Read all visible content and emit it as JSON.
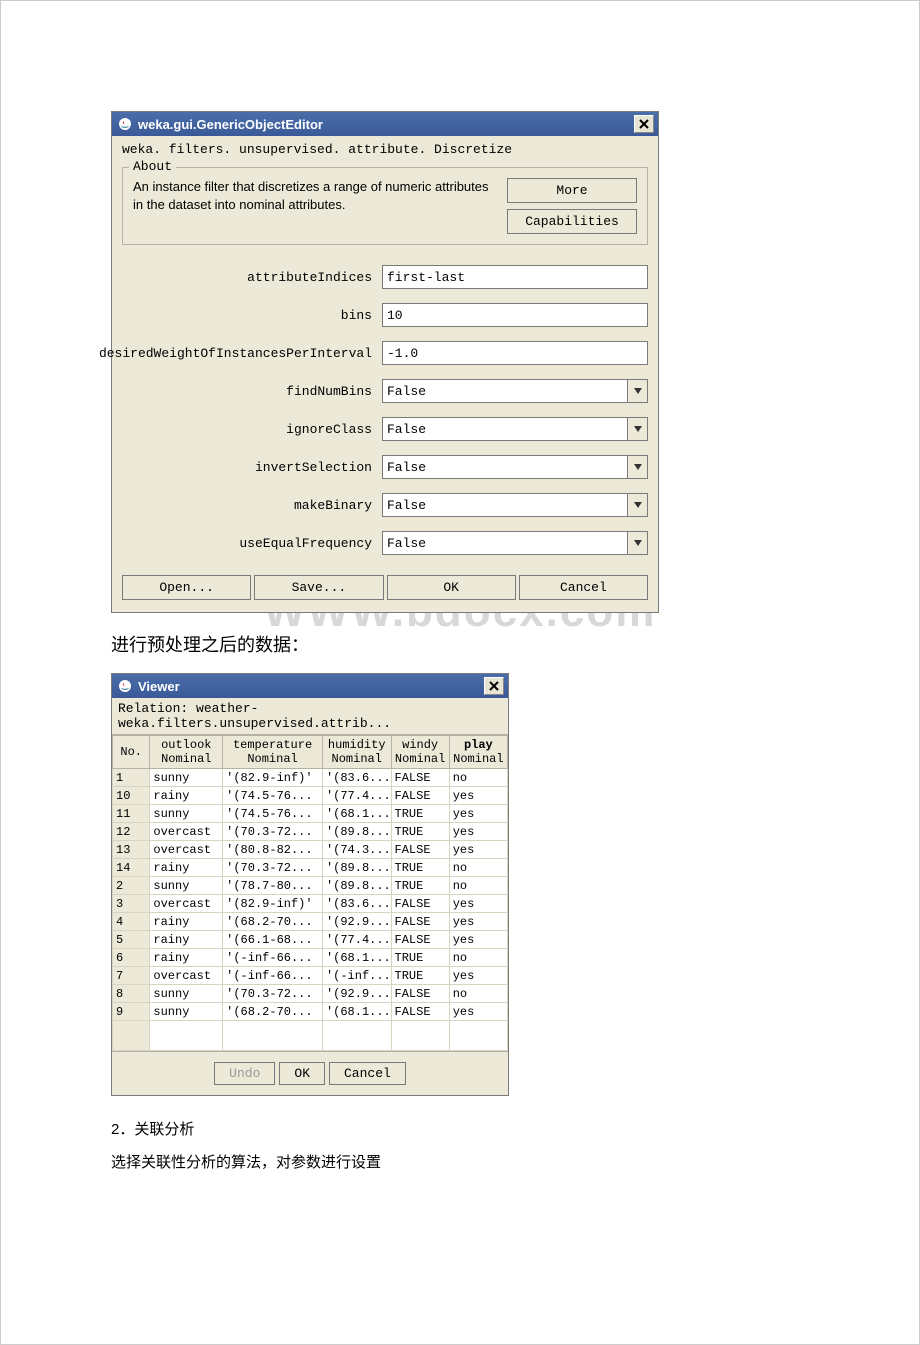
{
  "watermark": "WWW.bdocx.com",
  "editor": {
    "title": "weka.gui.GenericObjectEditor",
    "classpath": "weka. filters. unsupervised. attribute. Discretize",
    "about": {
      "legend": "About",
      "text": "An instance filter that discretizes a range of numeric attributes in the dataset into nominal attributes.",
      "more_btn": "More",
      "capabilities_btn": "Capabilities"
    },
    "params": [
      {
        "label": "attributeIndices",
        "kind": "text",
        "value": "first-last"
      },
      {
        "label": "bins",
        "kind": "text",
        "value": "10"
      },
      {
        "label": "desiredWeightOfInstancesPerInterval",
        "kind": "text",
        "value": "-1.0"
      },
      {
        "label": "findNumBins",
        "kind": "select",
        "value": "False"
      },
      {
        "label": "ignoreClass",
        "kind": "select",
        "value": "False"
      },
      {
        "label": "invertSelection",
        "kind": "select",
        "value": "False"
      },
      {
        "label": "makeBinary",
        "kind": "select",
        "value": "False"
      },
      {
        "label": "useEqualFrequency",
        "kind": "select",
        "value": "False"
      }
    ],
    "buttons": {
      "open": "Open...",
      "save": "Save...",
      "ok": "OK",
      "cancel": "Cancel"
    }
  },
  "section_after_editor": "进行预处理之后的数据：",
  "viewer": {
    "title": "Viewer",
    "relation": "Relation: weather-weka.filters.unsupervised.attrib...",
    "columns": [
      {
        "name": "No.",
        "type": ""
      },
      {
        "name": "outlook",
        "type": "Nominal"
      },
      {
        "name": "temperature",
        "type": "Nominal"
      },
      {
        "name": "humidity",
        "type": "Nominal"
      },
      {
        "name": "windy",
        "type": "Nominal"
      },
      {
        "name": "play",
        "type": "Nominal",
        "bold": true
      }
    ],
    "col_widths": [
      "36px",
      "70px",
      "96px",
      "66px",
      "56px",
      "56px"
    ],
    "rows": [
      [
        "1",
        "sunny",
        "'(82.9-inf)'",
        "'(83.6...",
        "FALSE",
        "no"
      ],
      [
        "10",
        "rainy",
        "'(74.5-76...",
        "'(77.4...",
        "FALSE",
        "yes"
      ],
      [
        "11",
        "sunny",
        "'(74.5-76...",
        "'(68.1...",
        "TRUE",
        "yes"
      ],
      [
        "12",
        "overcast",
        "'(70.3-72...",
        "'(89.8...",
        "TRUE",
        "yes"
      ],
      [
        "13",
        "overcast",
        "'(80.8-82...",
        "'(74.3...",
        "FALSE",
        "yes"
      ],
      [
        "14",
        "rainy",
        "'(70.3-72...",
        "'(89.8...",
        "TRUE",
        "no"
      ],
      [
        "2",
        "sunny",
        "'(78.7-80...",
        "'(89.8...",
        "TRUE",
        "no"
      ],
      [
        "3",
        "overcast",
        "'(82.9-inf)'",
        "'(83.6...",
        "FALSE",
        "yes"
      ],
      [
        "4",
        "rainy",
        "'(68.2-70...",
        "'(92.9...",
        "FALSE",
        "yes"
      ],
      [
        "5",
        "rainy",
        "'(66.1-68...",
        "'(77.4...",
        "FALSE",
        "yes"
      ],
      [
        "6",
        "rainy",
        "'(-inf-66...",
        "'(68.1...",
        "TRUE",
        "no"
      ],
      [
        "7",
        "overcast",
        "'(-inf-66...",
        "'(-inf...",
        "TRUE",
        "yes"
      ],
      [
        "8",
        "sunny",
        "'(70.3-72...",
        "'(92.9...",
        "FALSE",
        "no"
      ],
      [
        "9",
        "sunny",
        "'(68.2-70...",
        "'(68.1...",
        "FALSE",
        "yes"
      ]
    ],
    "buttons": {
      "undo": "Undo",
      "ok": "OK",
      "cancel": "Cancel"
    }
  },
  "footer_texts": {
    "line1": "2．关联分析",
    "line2": "选择关联性分析的算法，对参数进行设置"
  },
  "colors": {
    "window_bg": "#ece9d8",
    "titlebar_top": "#4a6ea9",
    "titlebar_bottom": "#3b5998",
    "border": "#7a7a7a",
    "light_border": "#b5b1a3",
    "cell_border": "#d8d4c4",
    "watermark": "#d8d8d8"
  }
}
